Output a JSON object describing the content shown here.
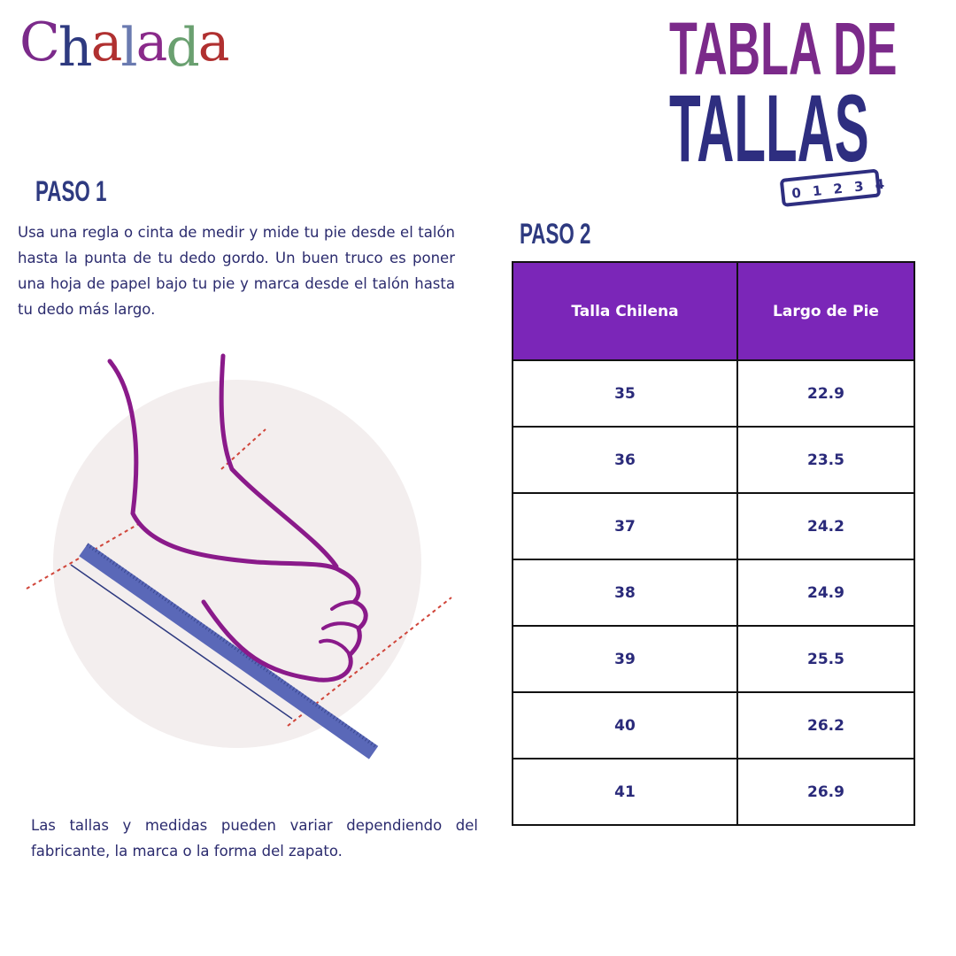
{
  "brand": {
    "logo_text": "Chalada",
    "logo_letters": [
      [
        "C",
        "#7b2a8a"
      ],
      [
        "h",
        "#2e3a80"
      ],
      [
        "a",
        "#b03030"
      ],
      [
        "l",
        "#6a7ab0"
      ],
      [
        "a",
        "#8a2a8a"
      ],
      [
        "d",
        "#6aa070"
      ],
      [
        "a",
        "#b03030"
      ]
    ]
  },
  "title": {
    "line1": "TABLA DE",
    "line2": "TALLAS",
    "ruler_numbers": "0 1 2 3 4"
  },
  "step1": {
    "heading": "PASO 1",
    "text": "Usa una regla o cinta de medir y mide tu pie desde el talón hasta la punta de tu dedo gordo. Un buen truco es poner una hoja de papel bajo tu pie y marca desde el talón hasta tu dedo más largo."
  },
  "step2": {
    "heading": "PASO 2"
  },
  "table": {
    "headers": [
      "Talla Chilena",
      "Largo de Pie"
    ],
    "rows": [
      [
        "35",
        "22.9"
      ],
      [
        "36",
        "23.5"
      ],
      [
        "37",
        "24.2"
      ],
      [
        "38",
        "24.9"
      ],
      [
        "39",
        "25.5"
      ],
      [
        "40",
        "26.2"
      ],
      [
        "41",
        "26.9"
      ]
    ]
  },
  "footnote": "Las tallas y medidas pueden variar dependiendo del fabricante, la marca o la forma del zapato.",
  "colors": {
    "purple": "#7b26b8",
    "navy": "#2e2e80",
    "foot": "#8a1a8a",
    "ruler": "#5a68b8",
    "circle": "#f3eeee"
  }
}
